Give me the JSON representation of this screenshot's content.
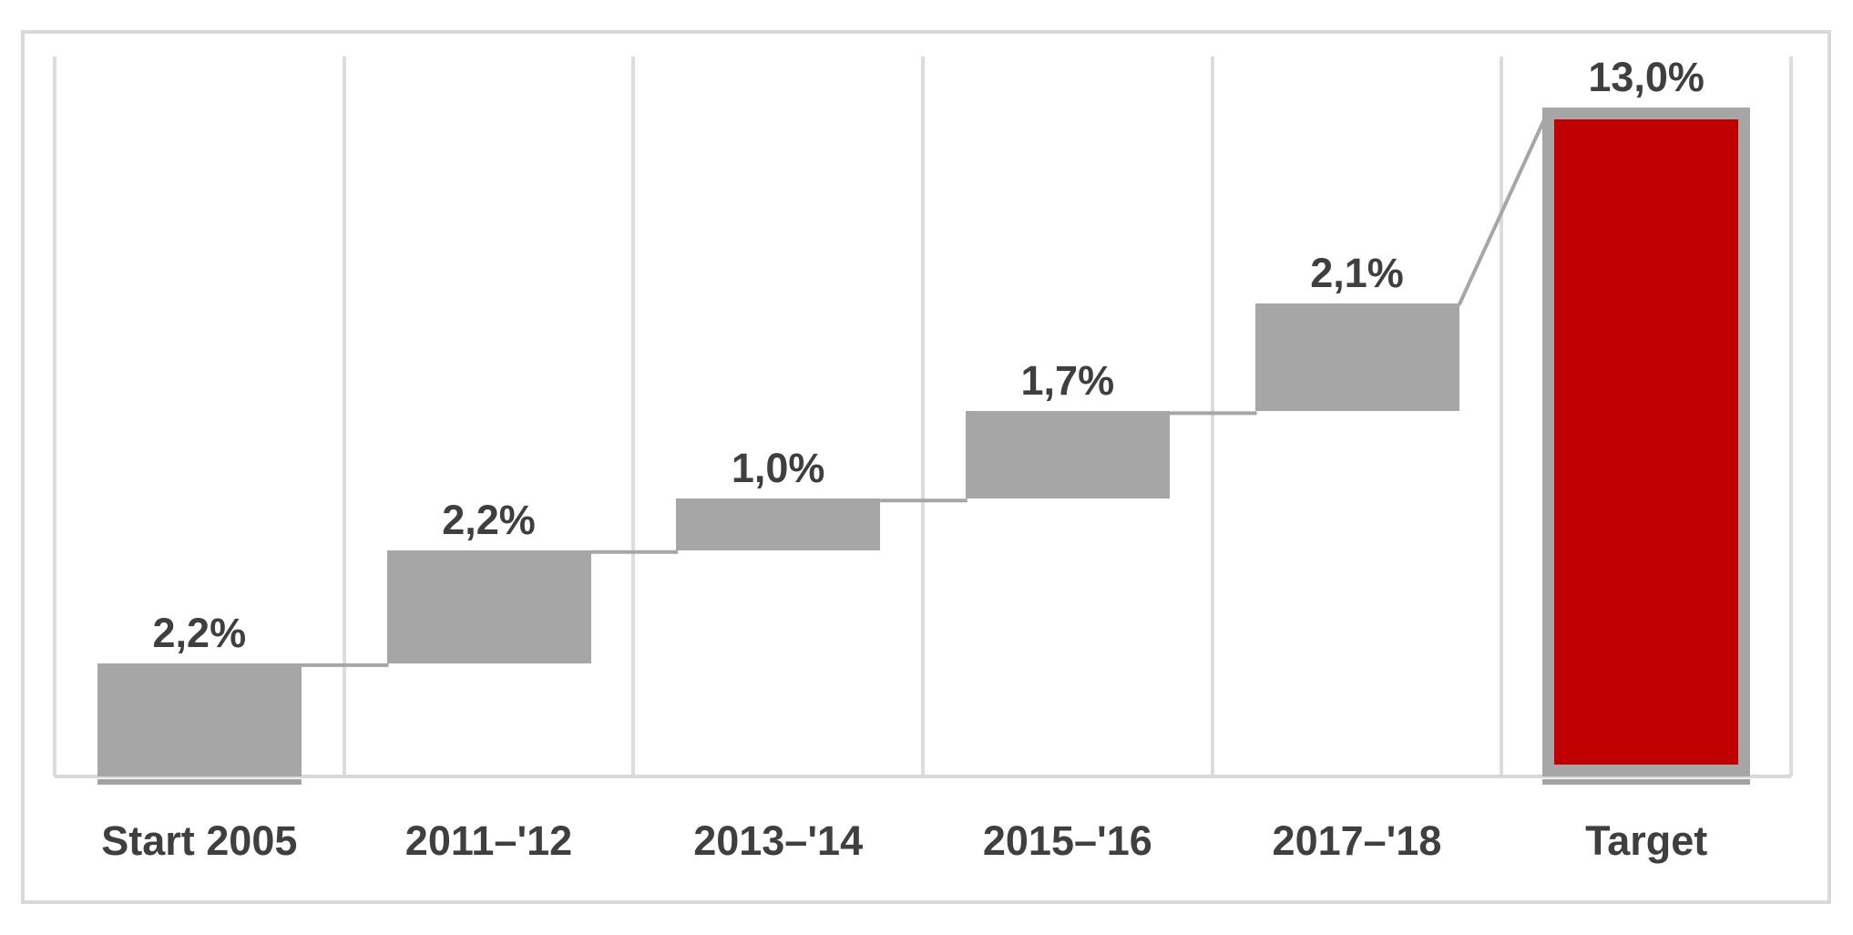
{
  "chart_data": {
    "type": "bar",
    "subtype": "waterfall",
    "title": "",
    "xlabel": "",
    "ylabel": "",
    "legend": "none",
    "grid": "vertical category separators only",
    "ylim": [
      0,
      14
    ],
    "categories": [
      "Start 2005",
      "2011–'12",
      "2013–'14",
      "2015–'16",
      "2017–'18",
      "Target"
    ],
    "values": [
      2.2,
      2.2,
      1.0,
      1.7,
      2.1,
      13.0
    ],
    "bars": [
      {
        "category": "Start 2005",
        "label": "2,2%",
        "value": 2.2,
        "base": 0.0,
        "end": 2.2,
        "role": "increment"
      },
      {
        "category": "2011–'12",
        "label": "2,2%",
        "value": 2.2,
        "base": 2.2,
        "end": 4.4,
        "role": "increment"
      },
      {
        "category": "2013–'14",
        "label": "1,0%",
        "value": 1.0,
        "base": 4.4,
        "end": 5.4,
        "role": "increment"
      },
      {
        "category": "2015–'16",
        "label": "1,7%",
        "value": 1.7,
        "base": 5.4,
        "end": 7.1,
        "role": "increment"
      },
      {
        "category": "2017–'18",
        "label": "2,1%",
        "value": 2.1,
        "base": 7.1,
        "end": 9.2,
        "role": "increment"
      },
      {
        "category": "Target",
        "label": "13,0%",
        "value": 13.0,
        "base": 0.0,
        "end": 13.0,
        "role": "total"
      }
    ],
    "connectors": "horizontal between consecutive increment bars; diagonal from last increment top to target bar top-left",
    "colors": {
      "increment_fill": "#a6a6a6",
      "total_fill": "#c00000",
      "total_border": "#a6a6a6",
      "connector": "#a6a6a6",
      "gridline": "#dcdcdc",
      "axis_line": "#d9d9d9",
      "frame_border": "#d9d9d9",
      "label_text": "#3f3f3f",
      "base_shadow": "#a3a3a3",
      "background": "#ffffff"
    }
  }
}
